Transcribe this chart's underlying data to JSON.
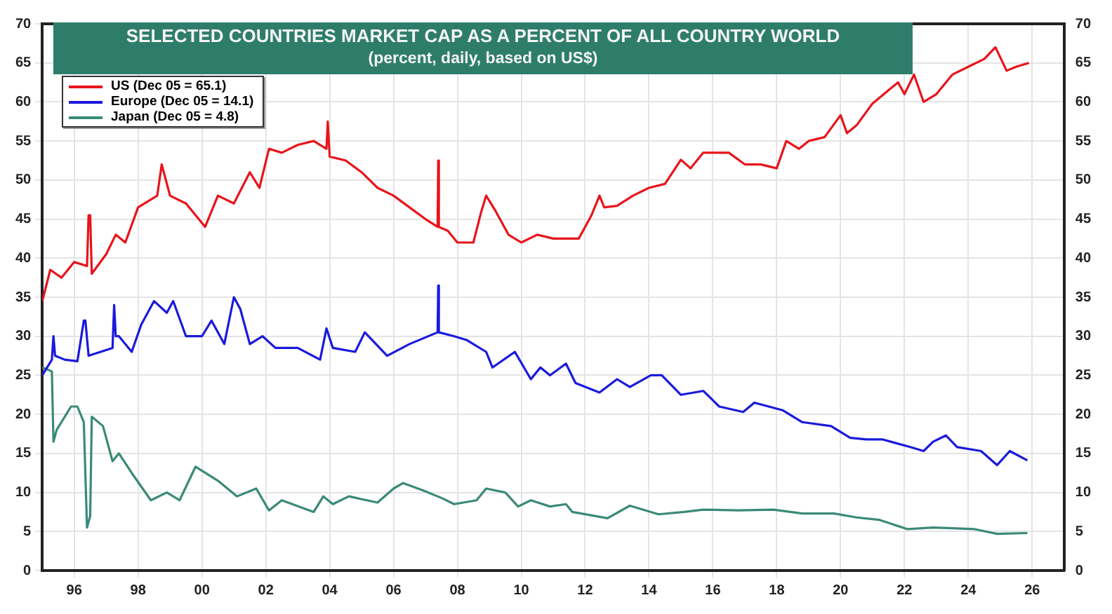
{
  "chart_data": {
    "type": "line",
    "title": "SELECTED COUNTRIES MARKET CAP AS A PERCENT OF ALL COUNTRY WORLD",
    "subtitle": "(percent, daily, based on US$)",
    "xlim": [
      1995,
      2027
    ],
    "xticks": [
      {
        "value": 1996,
        "label": "96"
      },
      {
        "value": 1998,
        "label": "98"
      },
      {
        "value": 2000,
        "label": "00"
      },
      {
        "value": 2002,
        "label": "02"
      },
      {
        "value": 2004,
        "label": "04"
      },
      {
        "value": 2006,
        "label": "06"
      },
      {
        "value": 2008,
        "label": "08"
      },
      {
        "value": 2010,
        "label": "10"
      },
      {
        "value": 2012,
        "label": "12"
      },
      {
        "value": 2014,
        "label": "14"
      },
      {
        "value": 2016,
        "label": "16"
      },
      {
        "value": 2018,
        "label": "18"
      },
      {
        "value": 2020,
        "label": "20"
      },
      {
        "value": 2022,
        "label": "22"
      },
      {
        "value": 2024,
        "label": "24"
      },
      {
        "value": 2026,
        "label": "26"
      }
    ],
    "ylim": [
      0,
      70
    ],
    "yticks": [
      0,
      5,
      10,
      15,
      20,
      25,
      30,
      35,
      40,
      45,
      50,
      55,
      60,
      65,
      70
    ],
    "y2lim": [
      0,
      70
    ],
    "y2ticks": [
      0,
      5,
      10,
      15,
      20,
      25,
      30,
      35,
      40,
      45,
      50,
      55,
      60,
      65,
      70
    ],
    "grid": true,
    "legend": "top left",
    "marker": "none",
    "line_style": "solid",
    "series": [
      {
        "name": "US (Dec 05 = 65.1)",
        "color": "#e8141b",
        "x": [
          1995.0,
          1995.25,
          1995.6,
          1996.0,
          1996.4,
          1996.45,
          1996.5,
          1996.55,
          1997.0,
          1997.3,
          1997.6,
          1998.0,
          1998.6,
          1998.74,
          1999.0,
          1999.5,
          2000.1,
          2000.5,
          2001.0,
          2001.5,
          2001.8,
          2002.1,
          2002.5,
          2003.0,
          2003.5,
          2003.9,
          2003.94,
          2004.0,
          2004.5,
          2005.0,
          2005.5,
          2006.0,
          2006.5,
          2007.0,
          2007.38,
          2007.4,
          2007.42,
          2007.7,
          2008.0,
          2008.5,
          2008.75,
          2008.9,
          2009.2,
          2009.6,
          2010.0,
          2010.5,
          2011.0,
          2011.5,
          2011.8,
          2012.2,
          2012.45,
          2012.6,
          2013.0,
          2013.5,
          2014.0,
          2014.5,
          2015.0,
          2015.3,
          2015.7,
          2016.0,
          2016.5,
          2017.0,
          2017.5,
          2018.0,
          2018.3,
          2018.7,
          2019.0,
          2019.5,
          2020.0,
          2020.2,
          2020.5,
          2021.0,
          2021.5,
          2021.8,
          2022.0,
          2022.3,
          2022.6,
          2023.0,
          2023.5,
          2024.0,
          2024.5,
          2024.85,
          2025.2,
          2025.5,
          2025.9
        ],
        "values": [
          34.5,
          38.5,
          37.5,
          39.5,
          39,
          45.5,
          45.5,
          38,
          40.5,
          43,
          42,
          46.5,
          48,
          52,
          48,
          47,
          44,
          48,
          47,
          51,
          49,
          54,
          53.5,
          54.5,
          55,
          54,
          57.5,
          53,
          52.5,
          51,
          49,
          48,
          46.5,
          45,
          44,
          52.5,
          44,
          43.5,
          42,
          42,
          46,
          48,
          46,
          43,
          42,
          43,
          42.5,
          42.5,
          42.5,
          45.5,
          48,
          46.5,
          46.7,
          48,
          49,
          49.5,
          52.6,
          51.5,
          53.5,
          53.5,
          53.5,
          52,
          52,
          51.5,
          55,
          54,
          55,
          55.5,
          58.3,
          56,
          57,
          59.8,
          61.5,
          62.5,
          61,
          63.5,
          60,
          61,
          63.5,
          64.5,
          65.5,
          67,
          64,
          64.5,
          65
        ]
      },
      {
        "name": "Europe (Dec 05 = 14.1)",
        "color": "#1a1adb",
        "x": [
          1995.0,
          1995.3,
          1995.35,
          1995.4,
          1995.7,
          1996.1,
          1996.3,
          1996.35,
          1996.45,
          1997.2,
          1997.25,
          1997.3,
          1997.4,
          1997.8,
          1998.1,
          1998.5,
          1998.9,
          1999.1,
          1999.5,
          2000.0,
          2000.3,
          2000.7,
          2001.0,
          2001.2,
          2001.5,
          2001.9,
          2002.3,
          2003.0,
          2003.7,
          2003.9,
          2004.1,
          2004.8,
          2005.1,
          2005.8,
          2006.5,
          2007.38,
          2007.4,
          2007.42,
          2007.9,
          2008.3,
          2008.9,
          2009.1,
          2009.8,
          2010.3,
          2010.6,
          2010.9,
          2011.4,
          2011.7,
          2012.45,
          2013.0,
          2013.4,
          2014.06,
          2014.4,
          2015.0,
          2015.7,
          2016.2,
          2016.95,
          2017.3,
          2018.2,
          2018.8,
          2019.7,
          2020.3,
          2020.8,
          2021.3,
          2022.2,
          2022.6,
          2022.9,
          2023.3,
          2023.65,
          2024.4,
          2024.9,
          2025.3,
          2025.85
        ],
        "values": [
          25,
          27,
          30,
          27.5,
          27,
          26.8,
          32,
          32,
          27.5,
          28.5,
          34,
          30,
          30,
          28,
          31.5,
          34.5,
          33,
          34.5,
          30,
          30,
          32,
          29,
          35,
          33.5,
          29,
          30,
          28.5,
          28.5,
          27,
          31,
          28.5,
          28,
          30.5,
          27.5,
          29,
          30.5,
          36.5,
          30.5,
          30,
          29.5,
          28,
          26,
          28,
          24.5,
          26,
          25,
          26.5,
          24,
          22.8,
          24.5,
          23.5,
          25,
          25,
          22.5,
          23,
          21,
          20.3,
          21.5,
          20.5,
          19,
          18.5,
          17,
          16.8,
          16.8,
          15.8,
          15.3,
          16.5,
          17.3,
          15.8,
          15.3,
          13.5,
          15.3,
          14.1
        ]
      },
      {
        "name": "Japan (Dec 05 = 4.8)",
        "color": "#3a8a78",
        "x": [
          1995.0,
          1995.3,
          1995.35,
          1995.45,
          1995.9,
          1996.1,
          1996.3,
          1996.4,
          1996.5,
          1996.55,
          1996.9,
          1997.2,
          1997.4,
          1997.8,
          1998.4,
          1998.9,
          1999.3,
          1999.8,
          2000.5,
          2001.1,
          2001.7,
          2002.1,
          2002.5,
          2003.5,
          2003.8,
          2004.1,
          2004.6,
          2005.5,
          2006.0,
          2006.3,
          2006.9,
          2007.5,
          2007.9,
          2008.6,
          2008.9,
          2009.5,
          2009.9,
          2010.3,
          2010.9,
          2011.4,
          2011.6,
          2012.7,
          2013.4,
          2014.3,
          2015.1,
          2015.7,
          2016.8,
          2017.9,
          2018.8,
          2019.8,
          2020.5,
          2021.2,
          2022.1,
          2022.9,
          2024.2,
          2024.9,
          2025.85
        ],
        "values": [
          26,
          25.5,
          16.5,
          18,
          21,
          21,
          19,
          5.5,
          7,
          19.7,
          18.5,
          14,
          15,
          12.5,
          9,
          10,
          9,
          13.3,
          11.5,
          9.5,
          10.5,
          7.7,
          9,
          7.5,
          9.5,
          8.5,
          9.5,
          8.7,
          10.5,
          11.2,
          10.3,
          9.3,
          8.5,
          9,
          10.5,
          10,
          8.2,
          9,
          8.2,
          8.5,
          7.5,
          6.7,
          8.3,
          7.2,
          7.5,
          7.8,
          7.7,
          7.8,
          7.3,
          7.3,
          6.8,
          6.5,
          5.3,
          5.5,
          5.3,
          4.7,
          4.8
        ]
      }
    ]
  }
}
